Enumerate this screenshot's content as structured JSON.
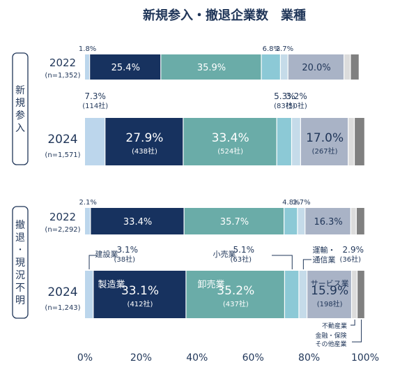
{
  "chart_data": {
    "type": "bar",
    "orientation": "horizontal-stacked-percent",
    "title": "新規参入・撤退企業数　業種",
    "categories": [
      "建設業",
      "製造業",
      "卸売業",
      "小売業",
      "運輸・通信業",
      "サービス業",
      "不動産業",
      "金融・保険 その他産業"
    ],
    "xlim": [
      0,
      100
    ],
    "x_ticks": [
      "0%",
      "20%",
      "40%",
      "60%",
      "80%",
      "100%"
    ],
    "colors": [
      "#bcd6ec",
      "#17325f",
      "#6aaca8",
      "#8cc9d6",
      "#c5dbe9",
      "#a9b3c6",
      "#dcdcdc",
      "#808080"
    ],
    "groups": [
      {
        "label": "新規参入",
        "rows": [
          {
            "year": "2022",
            "n": "(n=1,352)",
            "values": [
              1.8,
              25.4,
              35.9,
              6.8,
              2.7,
              20.0,
              2.3,
              3.1
            ],
            "labels": [
              "1.8%",
              "25.4%",
              "35.9%",
              "6.8%",
              "2.7%",
              "20.0%",
              "",
              ""
            ],
            "counts": [
              "",
              "",
              "",
              "",
              "",
              "",
              "",
              ""
            ]
          },
          {
            "year": "2024",
            "n": "(n=1,571)",
            "values": [
              7.3,
              27.9,
              33.4,
              5.3,
              3.2,
              17.0,
              2.2,
              3.7
            ],
            "labels": [
              "7.3%",
              "27.9%",
              "33.4%",
              "5.3%",
              "3.2%",
              "17.0%",
              "",
              ""
            ],
            "counts": [
              "(114社)",
              "(438社)",
              "(524社)",
              "(83社)",
              "(50社)",
              "(267社)",
              "",
              ""
            ]
          }
        ]
      },
      {
        "label": "撤退・現況不明",
        "rows": [
          {
            "year": "2022",
            "n": "(n=2,292)",
            "values": [
              2.1,
              33.4,
              35.7,
              4.8,
              2.7,
              16.3,
              2.0,
              3.0
            ],
            "labels": [
              "2.1%",
              "33.4%",
              "35.7%",
              "4.8%",
              "2.7%",
              "16.3%",
              "",
              ""
            ],
            "counts": [
              "",
              "",
              "",
              "",
              "",
              "",
              "",
              ""
            ]
          },
          {
            "year": "2024",
            "n": "(n=1,243)",
            "values": [
              3.1,
              33.1,
              35.2,
              5.1,
              2.9,
              15.9,
              2.0,
              2.7
            ],
            "labels": [
              "3.1%",
              "33.1%",
              "35.2%",
              "5.1%",
              "2.9%",
              "15.9%",
              "",
              ""
            ],
            "counts": [
              "(38社)",
              "(412社)",
              "(437社)",
              "(63社)",
              "(36社)",
              "(198社)",
              "",
              ""
            ]
          }
        ]
      }
    ],
    "annotations": {
      "construction": "建設業",
      "manufacturing": "製造業",
      "wholesale": "卸売業",
      "retail": "小売業",
      "transport_line1": "運輸・",
      "transport_line2": "通信業",
      "services": "サービス業",
      "realestate": "不動産業",
      "finance_line1": "金融・保険",
      "finance_line2": "その他産業"
    }
  }
}
